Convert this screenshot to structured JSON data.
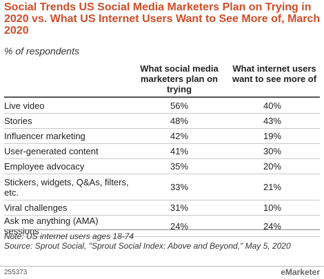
{
  "chart_data": {
    "type": "table",
    "title": "Social Trends US Social Media Marketers Plan on Trying in 2020 vs. What US Internet Users Want to See More of, March 2020",
    "subtitle": "% of respondents",
    "columns": [
      "What social media marketers plan on trying",
      "What internet users want to see more of"
    ],
    "rows": [
      {
        "label": "Live video",
        "values": [
          "56%",
          "40%"
        ]
      },
      {
        "label": "Stories",
        "values": [
          "48%",
          "43%"
        ]
      },
      {
        "label": "Influencer marketing",
        "values": [
          "42%",
          "19%"
        ]
      },
      {
        "label": "User-generated content",
        "values": [
          "41%",
          "30%"
        ]
      },
      {
        "label": "Employee advocacy",
        "values": [
          "35%",
          "20%"
        ]
      },
      {
        "label": "Stickers, widgets, Q&As, filters, etc.",
        "values": [
          "33%",
          "21%"
        ]
      },
      {
        "label": "Viral challenges",
        "values": [
          "31%",
          "10%"
        ]
      },
      {
        "label": "Ask me anything (AMA) sessions",
        "values": [
          "24%",
          "24%"
        ]
      }
    ],
    "series": [
      {
        "name": "What social media marketers plan on trying",
        "values": [
          56,
          48,
          42,
          41,
          35,
          33,
          31,
          24
        ]
      },
      {
        "name": "What internet users want to see more of",
        "values": [
          40,
          43,
          19,
          30,
          20,
          21,
          10,
          24
        ]
      }
    ]
  },
  "notes": {
    "note": "Note: US internet users ages 18-74",
    "source": "Source: Sprout Social, \"Sprout Social Index: Above and Beyond,\" May 5, 2020"
  },
  "footer": {
    "chart_id": "255373",
    "logo": "eMarketer"
  },
  "colors": {
    "title": "#d14b27",
    "rule": "#555555"
  }
}
